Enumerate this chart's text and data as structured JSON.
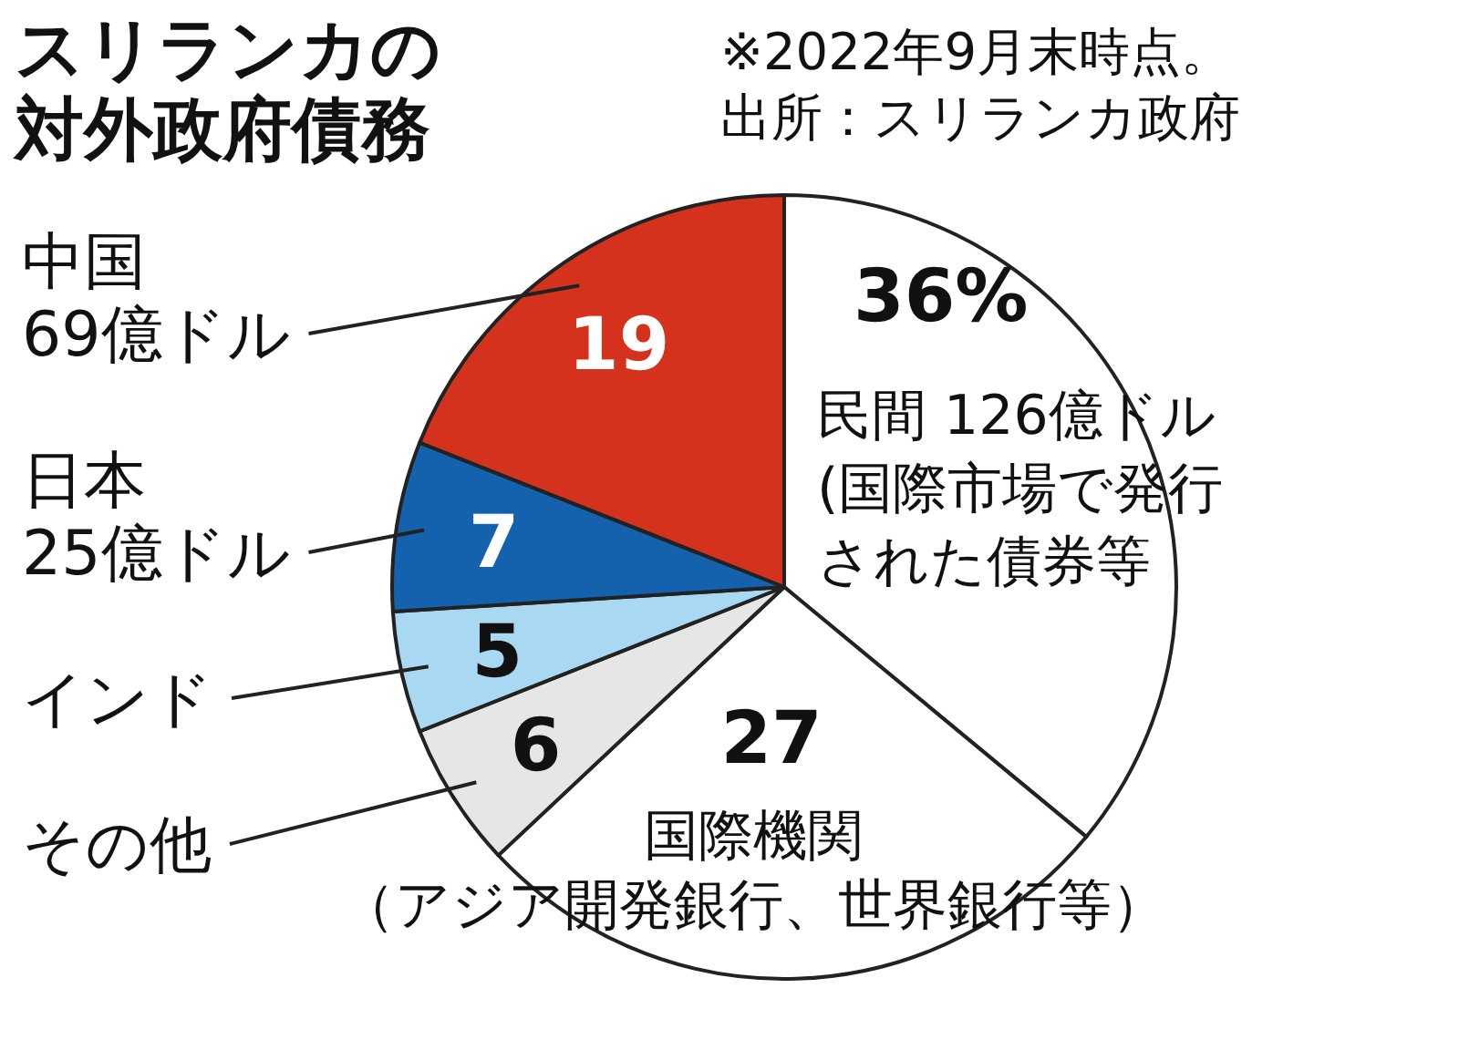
{
  "chart_data": {
    "type": "pie",
    "title": "スリランカの対外政府債務",
    "annotations": [
      "※2022年9月末時点。",
      "出所：スリランカ政府"
    ],
    "categories": [
      "民間 126億ドル(国際市場で発行された債券等",
      "国際機関（アジア開発銀行、世界銀行等）",
      "その他",
      "インド",
      "日本25億ドル",
      "中国69億ドル"
    ],
    "values": [
      36,
      27,
      6,
      5,
      7,
      19
    ],
    "colors": [
      "#ffffff",
      "#ffffff",
      "#e6e6e6",
      "#a9d9f2",
      "#1462ae",
      "#d5321d"
    ],
    "value_labels": [
      "36%",
      "27",
      "6",
      "5",
      "7",
      "19"
    ]
  }
}
